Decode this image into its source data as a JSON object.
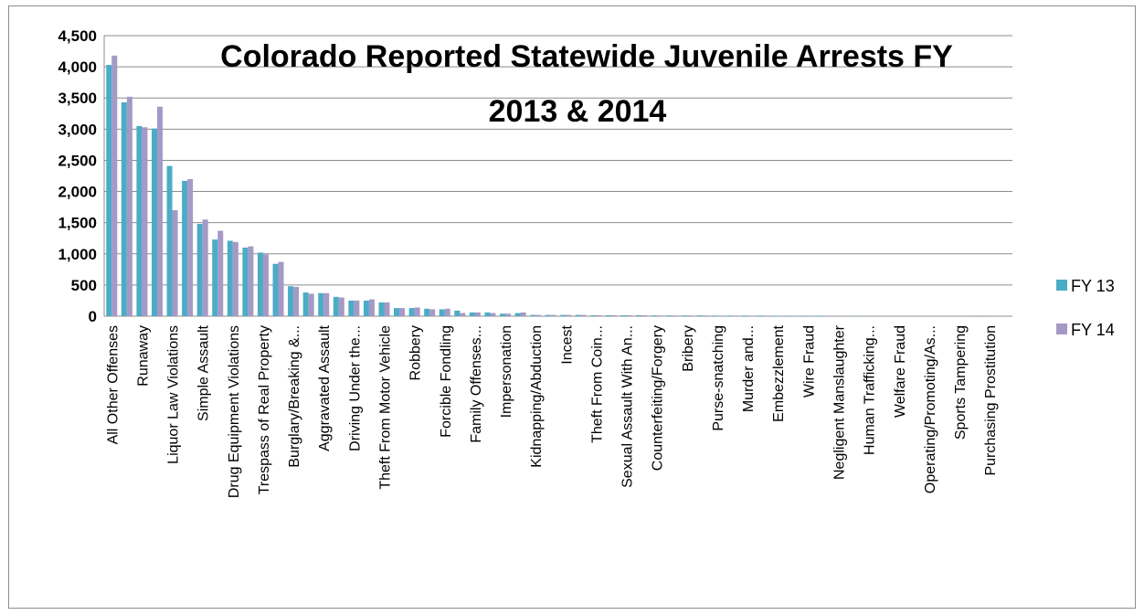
{
  "chart_data": {
    "type": "bar",
    "title_lines": [
      "Colorado Reported Statewide Juvenile Arrests FY",
      "2013 & 2014"
    ],
    "xlabel": "",
    "ylabel": "",
    "ylim": [
      0,
      4500
    ],
    "yticks": [
      0,
      500,
      1000,
      1500,
      2000,
      2500,
      3000,
      3500,
      4000,
      4500
    ],
    "ytick_labels": [
      "0",
      "500",
      "1,000",
      "1,500",
      "2,000",
      "2,500",
      "3,000",
      "3,500",
      "4,000",
      "4,500"
    ],
    "grid": true,
    "legend_position": "right",
    "categories": [
      "All Other Offenses",
      "",
      "Runaway",
      "",
      "Liquor Law Violations",
      "",
      "Simple Assault",
      "",
      "Drug Equipment Violations",
      "",
      "Trespass of Real Property",
      "",
      "Burglary/Breaking &...",
      "",
      "Aggravated Assault",
      "",
      "Driving Under the...",
      "",
      "Theft From Motor Vehicle",
      "",
      "Robbery",
      "",
      "Forcible Fondling",
      "",
      "Family Offenses...",
      "",
      "Impersonation",
      "",
      "Kidnapping/Abduction",
      "",
      "Incest",
      "",
      "Theft From Coin...",
      "",
      "Sexual Assault With An...",
      "",
      "Counterfeiting/Forgery",
      "",
      "Bribery",
      "",
      "Purse-snatching",
      "",
      "Murder and...",
      "",
      "Embezzlement",
      "",
      "Wire Fraud",
      "",
      "Negligent Manslaughter",
      "",
      "Human Trafficking...",
      "",
      "Welfare Fraud",
      "",
      "Operating/Promoting/As...",
      "",
      "Sports Tampering",
      "",
      "Purchasing Prostitution",
      ""
    ],
    "series": [
      {
        "name": "FY 13",
        "color": "#4bacc6",
        "values": [
          4030,
          3430,
          3050,
          3010,
          2410,
          2170,
          1480,
          1230,
          1210,
          1100,
          1020,
          840,
          480,
          380,
          370,
          310,
          250,
          250,
          220,
          130,
          130,
          120,
          110,
          90,
          60,
          60,
          40,
          50,
          20,
          20,
          20,
          20,
          15,
          15,
          15,
          15,
          12,
          12,
          12,
          12,
          10,
          10,
          10,
          10,
          8,
          8,
          8,
          8,
          5,
          5,
          5,
          5,
          3,
          3,
          3,
          3,
          2,
          2,
          1,
          1
        ]
      },
      {
        "name": "FY 14",
        "color": "#a599c6",
        "values": [
          4180,
          3520,
          3030,
          3360,
          1700,
          2200,
          1550,
          1370,
          1190,
          1120,
          990,
          870,
          470,
          360,
          370,
          300,
          250,
          270,
          220,
          130,
          140,
          110,
          120,
          50,
          60,
          50,
          40,
          60,
          20,
          20,
          20,
          20,
          15,
          15,
          15,
          15,
          12,
          12,
          12,
          12,
          10,
          10,
          10,
          10,
          8,
          8,
          8,
          8,
          5,
          5,
          5,
          5,
          3,
          3,
          3,
          3,
          2,
          10,
          1,
          1
        ]
      }
    ]
  }
}
